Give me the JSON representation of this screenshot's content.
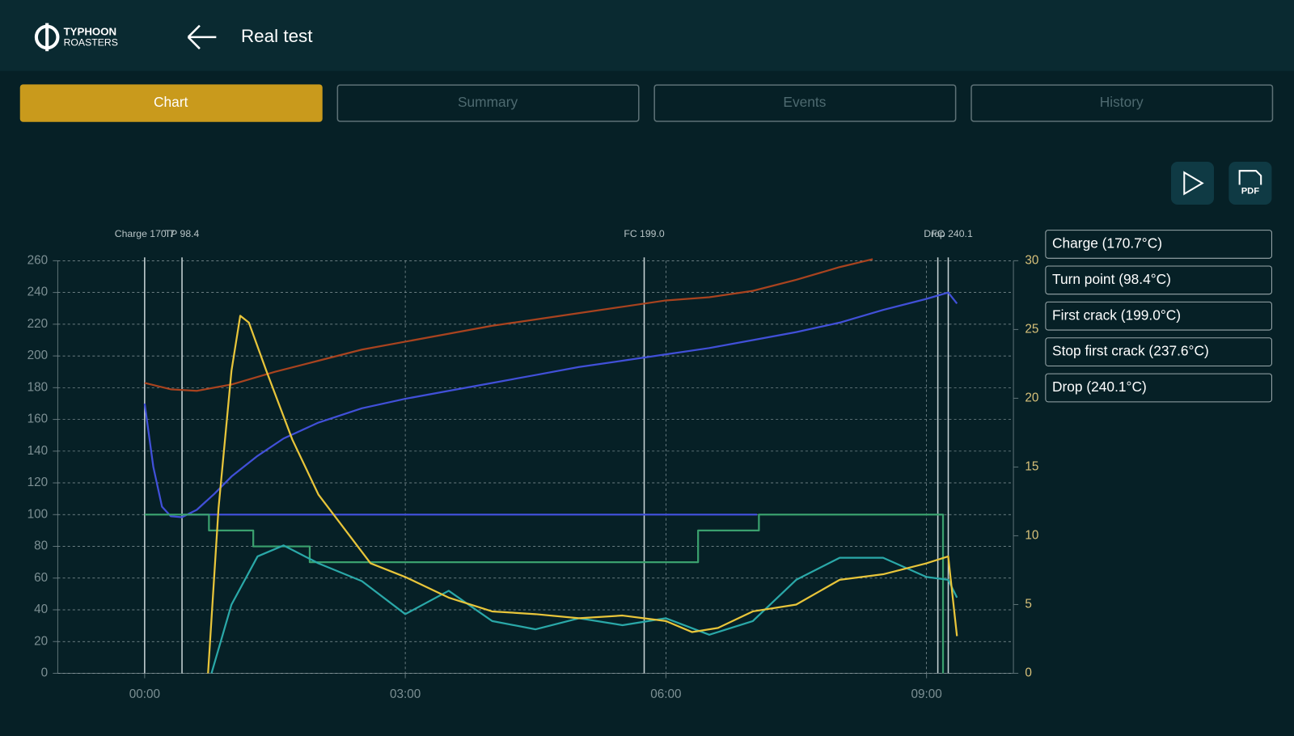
{
  "header": {
    "logo_line1": "TYPHOON",
    "logo_line2": "ROASTERS",
    "title": "Real test"
  },
  "tabs": [
    {
      "label": "Chart",
      "active": true
    },
    {
      "label": "Summary",
      "active": false
    },
    {
      "label": "Events",
      "active": false
    },
    {
      "label": "History",
      "active": false
    }
  ],
  "pdf_button": "PDF",
  "events_list": [
    "Charge (170.7°C)",
    "Turn point (98.4°C)",
    "First crack (199.0°C)",
    "Stop first crack (237.6°C)",
    "Drop (240.1°C)"
  ],
  "chart_data": {
    "type": "line",
    "xlim": [
      -1,
      10
    ],
    "xticks": [
      {
        "value": 0,
        "label": "00:00"
      },
      {
        "value": 3,
        "label": "03:00"
      },
      {
        "value": 6,
        "label": "06:00"
      },
      {
        "value": 9,
        "label": "09:00"
      }
    ],
    "ylim": [
      0,
      260
    ],
    "yticks": [
      0,
      20,
      40,
      60,
      80,
      100,
      120,
      140,
      160,
      180,
      200,
      220,
      240,
      260
    ],
    "y2lim": [
      0,
      30
    ],
    "y2ticks": [
      0,
      5,
      10,
      15,
      20,
      25,
      30
    ],
    "grid": true,
    "markers": [
      {
        "x": 0,
        "label": "Charge 170.7"
      },
      {
        "x": 0.43,
        "label": "TP 98.4"
      },
      {
        "x": 5.75,
        "label": "FC 199.0"
      },
      {
        "x": 9.13,
        "label": "FC"
      },
      {
        "x": 9.25,
        "label": "Drop 240.1"
      }
    ],
    "series": [
      {
        "color": "#a8431f",
        "x": [
          0,
          0.3,
          0.6,
          1.0,
          1.5,
          2.0,
          2.5,
          3.0,
          3.5,
          4.0,
          4.5,
          5.0,
          5.5,
          6.0,
          6.5,
          7.0,
          7.5,
          8.0,
          8.38
        ],
        "values": [
          183,
          179,
          178,
          182,
          190,
          197,
          204,
          209,
          214,
          219,
          223,
          227,
          231,
          235,
          237,
          241,
          248,
          256,
          261
        ]
      },
      {
        "color": "#4150d8",
        "x": [
          0,
          0.1,
          0.2,
          0.3,
          0.43,
          0.6,
          0.8,
          1.0,
          1.3,
          1.6,
          2.0,
          2.5,
          3.0,
          3.5,
          4.0,
          4.5,
          5.0,
          5.5,
          6.0,
          6.5,
          7.0,
          7.5,
          8.0,
          8.5,
          9.0,
          9.25,
          9.35
        ],
        "values": [
          170,
          130,
          105,
          99,
          98.4,
          103,
          113,
          124,
          137,
          148,
          158,
          167,
          173,
          178,
          183,
          188,
          193,
          197,
          201,
          205,
          210,
          215,
          221,
          229,
          236,
          240,
          233
        ]
      },
      {
        "color": "#4150d8",
        "x": [
          0.43,
          7.05
        ],
        "values": [
          100,
          100
        ]
      },
      {
        "color": "#3aa06e",
        "x": [
          0,
          0.74,
          0.74,
          1.25,
          1.25,
          1.9,
          1.9,
          6.37,
          6.37,
          7.07,
          7.07,
          9.19,
          9.19
        ],
        "values": [
          100,
          100,
          90,
          90,
          80,
          80,
          70,
          70,
          90,
          90,
          100,
          100,
          0
        ]
      },
      {
        "color": "#2aa8a8",
        "axis": "y2",
        "x": [
          0.77,
          1.0,
          1.3,
          1.6,
          2.0,
          2.5,
          3.0,
          3.5,
          4.0,
          4.5,
          5.0,
          5.5,
          6.0,
          6.5,
          7.0,
          7.5,
          8.0,
          8.5,
          9.0,
          9.25,
          9.35
        ],
        "values": [
          0,
          5,
          8.5,
          9.3,
          8,
          6.7,
          4.3,
          6,
          3.8,
          3.2,
          4,
          3.5,
          4,
          2.8,
          3.8,
          6.8,
          8.4,
          8.4,
          7,
          6.8,
          5.5
        ]
      },
      {
        "color": "#e8c53a",
        "axis": "y2",
        "x": [
          0.73,
          0.85,
          1.0,
          1.1,
          1.2,
          1.4,
          1.7,
          2.0,
          2.3,
          2.6,
          3.0,
          3.5,
          4.0,
          4.5,
          5.0,
          5.5,
          6.0,
          6.3,
          6.6,
          7.0,
          7.5,
          8.0,
          8.5,
          9.0,
          9.25,
          9.35
        ],
        "values": [
          0,
          12,
          22,
          26,
          25.5,
          22,
          17,
          13,
          10.5,
          8,
          7,
          5.5,
          4.5,
          4.3,
          4,
          4.2,
          3.8,
          3,
          3.3,
          4.5,
          5,
          6.8,
          7.2,
          8,
          8.5,
          2.7
        ]
      }
    ]
  }
}
